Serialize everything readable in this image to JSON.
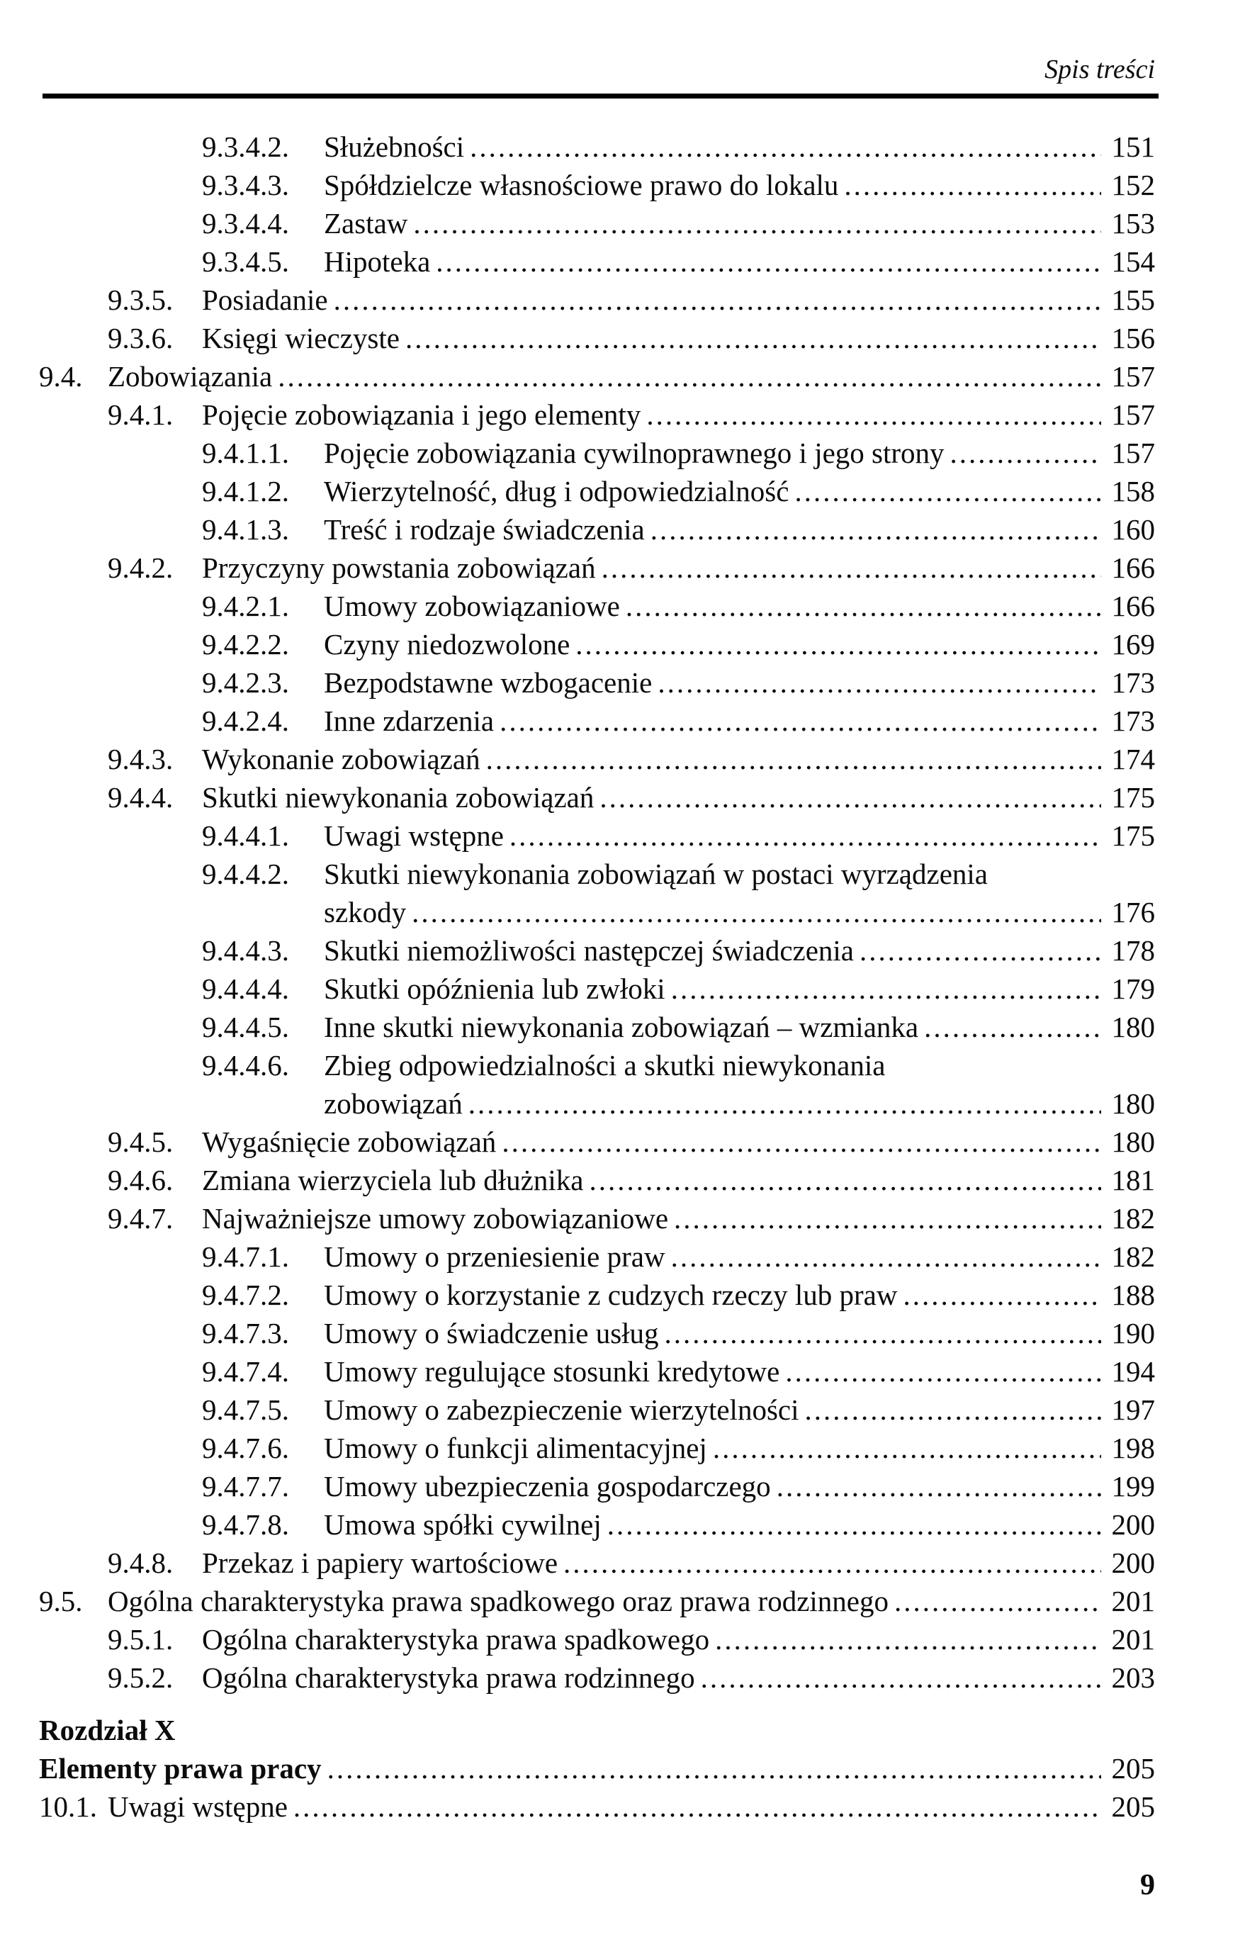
{
  "header": {
    "title": "Spis treści"
  },
  "toc": {
    "entries": [
      {
        "level": 3,
        "num": "9.3.4.2.",
        "label": "Służebności",
        "page": "151"
      },
      {
        "level": 3,
        "num": "9.3.4.3.",
        "label": "Spółdzielcze własnościowe prawo do lokalu",
        "page": "152"
      },
      {
        "level": 3,
        "num": "9.3.4.4.",
        "label": "Zastaw",
        "page": "153"
      },
      {
        "level": 3,
        "num": "9.3.4.5.",
        "label": "Hipoteka",
        "page": "154"
      },
      {
        "level": 2,
        "num": "9.3.5.",
        "label": "Posiadanie",
        "page": "155"
      },
      {
        "level": 2,
        "num": "9.3.6.",
        "label": "Księgi wieczyste",
        "page": "156"
      },
      {
        "level": 1,
        "num": "9.4.",
        "label": "Zobowiązania",
        "page": "157"
      },
      {
        "level": 2,
        "num": "9.4.1.",
        "label": "Pojęcie zobowiązania i jego elementy",
        "page": "157"
      },
      {
        "level": 3,
        "num": "9.4.1.1.",
        "label": "Pojęcie zobowiązania cywilnoprawnego i jego strony",
        "page": "157"
      },
      {
        "level": 3,
        "num": "9.4.1.2.",
        "label": "Wierzytelność, dług i odpowiedzialność",
        "page": "158"
      },
      {
        "level": 3,
        "num": "9.4.1.3.",
        "label": "Treść i rodzaje świadczenia",
        "page": "160"
      },
      {
        "level": 2,
        "num": "9.4.2.",
        "label": "Przyczyny powstania zobowiązań",
        "page": "166"
      },
      {
        "level": 3,
        "num": "9.4.2.1.",
        "label": "Umowy zobowiązaniowe",
        "page": "166"
      },
      {
        "level": 3,
        "num": "9.4.2.2.",
        "label": "Czyny niedozwolone",
        "page": "169"
      },
      {
        "level": 3,
        "num": "9.4.2.3.",
        "label": "Bezpodstawne wzbogacenie",
        "page": "173"
      },
      {
        "level": 3,
        "num": "9.4.2.4.",
        "label": "Inne zdarzenia",
        "page": "173"
      },
      {
        "level": 2,
        "num": "9.4.3.",
        "label": "Wykonanie zobowiązań",
        "page": "174"
      },
      {
        "level": 2,
        "num": "9.4.4.",
        "label": "Skutki niewykonania zobowiązań",
        "page": "175"
      },
      {
        "level": 3,
        "num": "9.4.4.1.",
        "label": "Uwagi wstępne",
        "page": "175"
      },
      {
        "level": 3,
        "num": "9.4.4.2.",
        "label": "Skutki niewykonania zobowiązań w postaci wyrządzenia",
        "label2": "szkody",
        "page": "176"
      },
      {
        "level": 3,
        "num": "9.4.4.3.",
        "label": "Skutki niemożliwości następczej świadczenia",
        "page": "178"
      },
      {
        "level": 3,
        "num": "9.4.4.4.",
        "label": "Skutki opóźnienia lub zwłoki",
        "page": "179"
      },
      {
        "level": 3,
        "num": "9.4.4.5.",
        "label": "Inne skutki niewykonania zobowiązań – wzmianka",
        "page": "180"
      },
      {
        "level": 3,
        "num": "9.4.4.6.",
        "label": "Zbieg odpowiedzialności a skutki niewykonania",
        "label2": "zobowiązań",
        "page": "180"
      },
      {
        "level": 2,
        "num": "9.4.5.",
        "label": "Wygaśnięcie zobowiązań",
        "page": "180"
      },
      {
        "level": 2,
        "num": "9.4.6.",
        "label": "Zmiana wierzyciela lub dłużnika",
        "page": "181"
      },
      {
        "level": 2,
        "num": "9.4.7.",
        "label": "Najważniejsze umowy zobowiązaniowe",
        "page": "182"
      },
      {
        "level": 3,
        "num": "9.4.7.1.",
        "label": "Umowy o przeniesienie praw",
        "page": "182"
      },
      {
        "level": 3,
        "num": "9.4.7.2.",
        "label": "Umowy o korzystanie z cudzych rzeczy lub praw",
        "page": "188"
      },
      {
        "level": 3,
        "num": "9.4.7.3.",
        "label": "Umowy o świadczenie usług",
        "page": "190"
      },
      {
        "level": 3,
        "num": "9.4.7.4.",
        "label": "Umowy regulujące stosunki kredytowe",
        "page": "194"
      },
      {
        "level": 3,
        "num": "9.4.7.5.",
        "label": "Umowy o zabezpieczenie wierzytelności",
        "page": "197"
      },
      {
        "level": 3,
        "num": "9.4.7.6.",
        "label": "Umowy o funkcji alimentacyjnej",
        "page": "198"
      },
      {
        "level": 3,
        "num": "9.4.7.7.",
        "label": "Umowy ubezpieczenia gospodarczego",
        "page": "199"
      },
      {
        "level": 3,
        "num": "9.4.7.8.",
        "label": "Umowa spółki cywilnej",
        "page": "200"
      },
      {
        "level": 2,
        "num": "9.4.8.",
        "label": "Przekaz i papiery wartościowe",
        "page": "200"
      },
      {
        "level": 1,
        "num": "9.5.",
        "label": "Ogólna charakterystyka prawa spadkowego oraz prawa rodzinnego",
        "page": "201"
      },
      {
        "level": 2,
        "num": "9.5.1.",
        "label": "Ogólna charakterystyka prawa spadkowego",
        "page": "201"
      },
      {
        "level": 2,
        "num": "9.5.2.",
        "label": "Ogólna charakterystyka prawa rodzinnego",
        "page": "203"
      }
    ]
  },
  "chapter": {
    "heading_number": "Rozdział X",
    "title": "Elementy prawa pracy",
    "title_page": "205",
    "entries": [
      {
        "level": "c",
        "num": "10.1.",
        "label": "Uwagi wstępne",
        "page": "205"
      }
    ]
  },
  "footer": {
    "page_number": "9"
  }
}
